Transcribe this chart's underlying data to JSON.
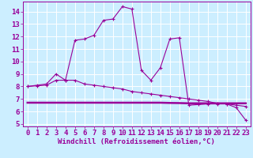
{
  "xlabel": "Windchill (Refroidissement éolien,°C)",
  "bg_color": "#cceeff",
  "line_color": "#990099",
  "xlim": [
    -0.5,
    23.5
  ],
  "ylim": [
    4.8,
    14.8
  ],
  "yticks": [
    5,
    6,
    7,
    8,
    9,
    10,
    11,
    12,
    13,
    14
  ],
  "xticks": [
    0,
    1,
    2,
    3,
    4,
    5,
    6,
    7,
    8,
    9,
    10,
    11,
    12,
    13,
    14,
    15,
    16,
    17,
    18,
    19,
    20,
    21,
    22,
    23
  ],
  "series1_x": [
    0,
    1,
    2,
    3,
    4,
    5,
    6,
    7,
    8,
    9,
    10,
    11,
    12,
    13,
    14,
    15,
    16,
    17,
    18,
    19,
    20,
    21,
    22,
    23
  ],
  "series1_y": [
    8.0,
    8.1,
    8.2,
    9.0,
    8.5,
    11.7,
    11.8,
    12.1,
    13.3,
    13.4,
    14.4,
    14.2,
    9.3,
    8.5,
    9.5,
    11.8,
    11.9,
    6.5,
    6.55,
    6.6,
    6.6,
    6.6,
    6.3,
    5.3
  ],
  "series2_x": [
    0,
    1,
    2,
    3,
    4,
    5,
    6,
    7,
    8,
    9,
    10,
    11,
    12,
    13,
    14,
    15,
    16,
    17,
    18,
    19,
    20,
    21,
    22,
    23
  ],
  "series2_y": [
    8.0,
    8.05,
    8.1,
    8.5,
    8.5,
    8.5,
    8.2,
    8.1,
    8.0,
    7.9,
    7.8,
    7.6,
    7.5,
    7.4,
    7.3,
    7.2,
    7.1,
    7.0,
    6.9,
    6.8,
    6.65,
    6.6,
    6.5,
    6.4
  ],
  "series3_x": [
    0,
    1,
    2,
    3,
    4,
    5,
    6,
    7,
    8,
    9,
    10,
    11,
    12,
    13,
    14,
    15,
    16,
    17,
    18,
    19,
    20,
    21,
    22,
    23
  ],
  "series3_y": [
    6.7,
    6.7,
    6.7,
    6.7,
    6.7,
    6.7,
    6.7,
    6.7,
    6.7,
    6.7,
    6.7,
    6.7,
    6.7,
    6.7,
    6.7,
    6.68,
    6.67,
    6.65,
    6.65,
    6.65,
    6.65,
    6.65,
    6.65,
    6.65
  ],
  "tick_fontsize": 6.5,
  "xlabel_fontsize": 6.5
}
